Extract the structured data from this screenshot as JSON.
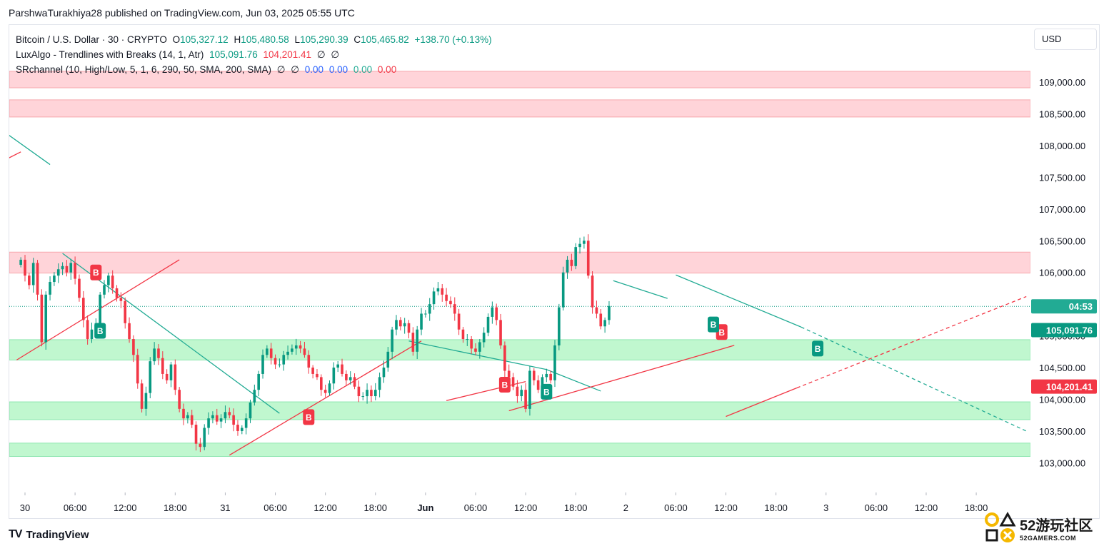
{
  "header": {
    "publisher": "ParshwaTurakhiya28 published on TradingView.com, Jun 03, 2025 05:55 UTC"
  },
  "legend": {
    "symbol": "Bitcoin / U.S. Dollar · 30 · CRYPTO",
    "open_label": "O",
    "open": "105,327.12",
    "high_label": "H",
    "high": "105,480.58",
    "low_label": "L",
    "low": "105,290.39",
    "close_label": "C",
    "close": "105,465.82",
    "change": "+138.70 (+0.13%)",
    "indicator1": "LuxAlgo - Trendlines with Breaks (14, 1, Atr)",
    "indicator1_v1": "105,091.76",
    "indicator1_v2": "104,201.41",
    "indicator1_na1": "∅",
    "indicator1_na2": "∅",
    "indicator2": "SRchannel (10, High/Low, 5, 1, 6, 290, 50, SMA, 200, SMA)",
    "indicator2_na1": "∅",
    "indicator2_na2": "∅",
    "indicator2_v1": "0.00",
    "indicator2_v2": "0.00",
    "indicator2_v3": "0.00",
    "indicator2_v4": "0.00"
  },
  "currency": "USD",
  "branding": {
    "tv_logo_mark": "TV",
    "tv_logo_text": "TradingView",
    "watermark_main": "52游玩社区",
    "watermark_sub": "52GAMERS.COM"
  },
  "colors": {
    "up": "#089981",
    "down": "#f23645",
    "resistance_zone": "#ffcdd2",
    "support_zone": "#b9f6ca",
    "trend_green": "#22ab94",
    "trend_red": "#f23645",
    "countdown_bg": "#22ab94",
    "price_tag_bg": "#089981",
    "lower_tag_bg": "#f23645"
  },
  "chart_data": {
    "type": "candlestick",
    "y_ticks": [
      "109,000.00",
      "108,500.00",
      "108,000.00",
      "107,500.00",
      "107,000.00",
      "106,500.00",
      "106,000.00",
      "105,500.00",
      "105,000.00",
      "104,500.00",
      "104,000.00",
      "103,500.00",
      "103,000.00"
    ],
    "y_tick_values": [
      109000,
      108500,
      108000,
      107500,
      107000,
      106500,
      106000,
      105500,
      105000,
      104500,
      104000,
      103500,
      103000
    ],
    "ylim": [
      102600,
      109700
    ],
    "x_ticks": [
      {
        "label": "30",
        "t": 0
      },
      {
        "label": "06:00",
        "t": 6
      },
      {
        "label": "12:00",
        "t": 12
      },
      {
        "label": "18:00",
        "t": 18
      },
      {
        "label": "31",
        "t": 24
      },
      {
        "label": "06:00",
        "t": 30
      },
      {
        "label": "12:00",
        "t": 36
      },
      {
        "label": "18:00",
        "t": 42
      },
      {
        "label": "Jun",
        "t": 48,
        "bold": true
      },
      {
        "label": "06:00",
        "t": 54
      },
      {
        "label": "12:00",
        "t": 60
      },
      {
        "label": "18:00",
        "t": 66
      },
      {
        "label": "2",
        "t": 72
      },
      {
        "label": "06:00",
        "t": 78
      },
      {
        "label": "12:00",
        "t": 84
      },
      {
        "label": "18:00",
        "t": 90
      },
      {
        "label": "3",
        "t": 96
      },
      {
        "label": "06:00",
        "t": 102
      },
      {
        "label": "12:00",
        "t": 108
      },
      {
        "label": "18:00",
        "t": 114
      }
    ],
    "xlim_hours": [
      -2,
      122
    ],
    "resistance_zones": [
      [
        108910,
        109170
      ],
      [
        108450,
        108720
      ],
      [
        105990,
        106320
      ]
    ],
    "support_zones": [
      [
        104620,
        104940
      ],
      [
        103680,
        103960
      ],
      [
        103100,
        103310
      ]
    ],
    "countdown": "04:53",
    "last_price": 105465.82,
    "price_tag": "105,091.76",
    "price_tag_value": 105091.76,
    "lower_tag": "104,201.41",
    "lower_tag_value": 104201.41,
    "closes": [
      106200,
      105950,
      105800,
      106150,
      105650,
      104900,
      105650,
      105850,
      105950,
      106050,
      106100,
      106000,
      106150,
      105900,
      105600,
      105250,
      104950,
      105100,
      105200,
      105650,
      105800,
      105950,
      105750,
      105600,
      105550,
      105200,
      104950,
      104700,
      104250,
      103850,
      104100,
      104600,
      104800,
      104650,
      104400,
      104300,
      104550,
      104150,
      103850,
      103700,
      103750,
      103600,
      103300,
      103250,
      103550,
      103700,
      103750,
      103650,
      103700,
      103800,
      103750,
      103600,
      103500,
      103550,
      103700,
      103950,
      104150,
      104400,
      104700,
      104800,
      104650,
      104550,
      104550,
      104700,
      104750,
      104800,
      104850,
      104800,
      104700,
      104500,
      104400,
      104350,
      104150,
      104100,
      104250,
      104500,
      104550,
      104400,
      104300,
      104350,
      104200,
      104050,
      104050,
      104150,
      104050,
      104150,
      104350,
      104500,
      104750,
      105100,
      105250,
      105150,
      105200,
      105050,
      104750,
      105100,
      105350,
      105350,
      105500,
      105700,
      105750,
      105650,
      105550,
      105500,
      105350,
      105100,
      104950,
      104950,
      104800,
      104750,
      104900,
      105050,
      105300,
      105450,
      105250,
      104850,
      104450,
      104350,
      104200,
      104050,
      104150,
      103850,
      104450,
      104300,
      104150,
      104350,
      104400,
      104300,
      104850,
      105450,
      106000,
      106200,
      106100,
      106400,
      106450,
      106500,
      105950,
      105450,
      105350,
      105150,
      105250,
      105470
    ],
    "trendlines_green": [
      {
        "t0": 4.5,
        "v0": 106300,
        "t1": 30.5,
        "v1": 103780
      },
      {
        "t0": 46,
        "v0": 104920,
        "t1": 62.5,
        "v1": 104470
      },
      {
        "t0": 62.5,
        "v0": 104470,
        "t1": 69,
        "v1": 104130
      },
      {
        "t0": 70.5,
        "v0": 105870,
        "t1": 77,
        "v1": 105590
      },
      {
        "t0": 78,
        "v0": 105960,
        "t1": 93,
        "v1": 105140
      }
    ],
    "trendline_green_dashed": {
      "t0": 93,
      "v0": 105140,
      "t1": 120,
      "v1": 103500
    },
    "trendlines_red": [
      {
        "t0": -1,
        "v0": 104620,
        "t1": 18.5,
        "v1": 106200
      },
      {
        "t0": 24.5,
        "v0": 103120,
        "t1": 47.5,
        "v1": 104920
      },
      {
        "t0": 50.5,
        "v0": 103980,
        "t1": 60,
        "v1": 104280
      },
      {
        "t0": 58,
        "v0": 103820,
        "t1": 85,
        "v1": 104850
      },
      {
        "t0": 84,
        "v0": 103730,
        "t1": 92.5,
        "v1": 104180
      }
    ],
    "trendline_red_dashed": {
      "t0": 92.5,
      "v0": 104180,
      "t1": 120,
      "v1": 105620
    },
    "short_lines": [
      {
        "color": "green",
        "t0": -2,
        "v0": 108170,
        "t1": 3,
        "v1": 107700
      },
      {
        "color": "red",
        "t0": -2,
        "v0": 107800,
        "t1": -0.5,
        "v1": 107900
      }
    ],
    "buy_badges_red": [
      {
        "label": "B",
        "t": 8.5,
        "v": 106000
      },
      {
        "label": "B",
        "t": 34,
        "v": 103720
      },
      {
        "label": "B",
        "t": 57.5,
        "v": 104230
      },
      {
        "label": "B",
        "t": 83.5,
        "v": 105060
      }
    ],
    "buy_badges_green": [
      {
        "label": "B",
        "t": 9,
        "v": 105080
      },
      {
        "label": "B",
        "t": 62.5,
        "v": 104120
      },
      {
        "label": "B",
        "t": 82.5,
        "v": 105180
      },
      {
        "label": "B",
        "t": 95,
        "v": 104800
      }
    ]
  }
}
